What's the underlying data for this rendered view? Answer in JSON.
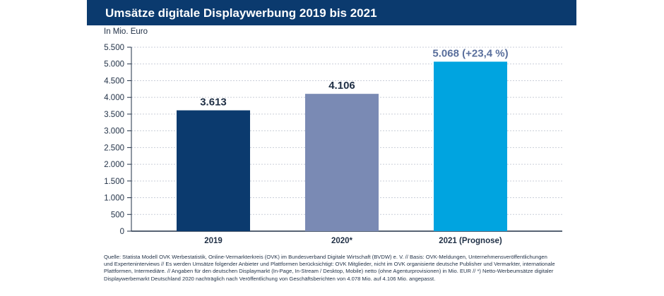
{
  "header": {
    "title": "Umsätze digitale Displaywerbung 2019 bis 2021"
  },
  "colors": {
    "header_bg": "#0b3a6e",
    "bar_2019": "#0b3a6e",
    "bar_2020": "#7a8ab4",
    "bar_2021": "#00a4e0",
    "axis": "#1f2f45",
    "label_2021": "#5a6f9c"
  },
  "chart_data": {
    "type": "bar",
    "title": "Umsätze digitale Displaywerbung 2019 bis 2021",
    "ylabel": "In Mio. Euro",
    "xlabel": "",
    "ylim": [
      0,
      5500
    ],
    "yticks": [
      0,
      500,
      1000,
      1500,
      2000,
      2500,
      3000,
      3500,
      4000,
      4500,
      5000,
      5500
    ],
    "ytick_labels": [
      "0",
      "500",
      "1.000",
      "1.500",
      "2.000",
      "2.500",
      "3.000",
      "3.500",
      "4.000",
      "4.500",
      "5.000",
      "5.500"
    ],
    "categories": [
      "2019",
      "2020*",
      "2021 (Prognose)"
    ],
    "values": [
      3613,
      4106,
      5068
    ],
    "value_labels": [
      "3.613",
      "4.106",
      "5.068"
    ],
    "value_label_suffix": [
      "",
      "",
      " (+23,4 %)"
    ],
    "bar_colors": [
      "#0b3a6e",
      "#7a8ab4",
      "#00a4e0"
    ],
    "grid": true
  },
  "source": "Quelle: Statista Modell OVK Werbestatistik, Online-Vermarkterkreis (OVK) im Bundesverband Digitale Wirtschaft (BVDW) e. V. // Basis: OVK-Meldungen, Unternehmensveröffentlichungen und Experteninterviews // Es werden Umsätze folgender Anbieter und Plattformen berücksichtigt: OVK Mitglieder, nicht im OVK organisierte deutsche Publisher und Vermarkter, internationale Plattformen, Intermediäre. // Angaben für den deutschen Displaymarkt (In-Page, In-Stream / Desktop, Mobile) netto (ohne Agenturprovisionen) in Mio. EUR // *) Netto-Werbeumsätze digitaler Displaywerbemarkt Deutschland 2020 nachträglich nach Veröffentlichung von Geschäftsberichten von 4.078 Mio. auf 4.106 Mio. angepasst."
}
